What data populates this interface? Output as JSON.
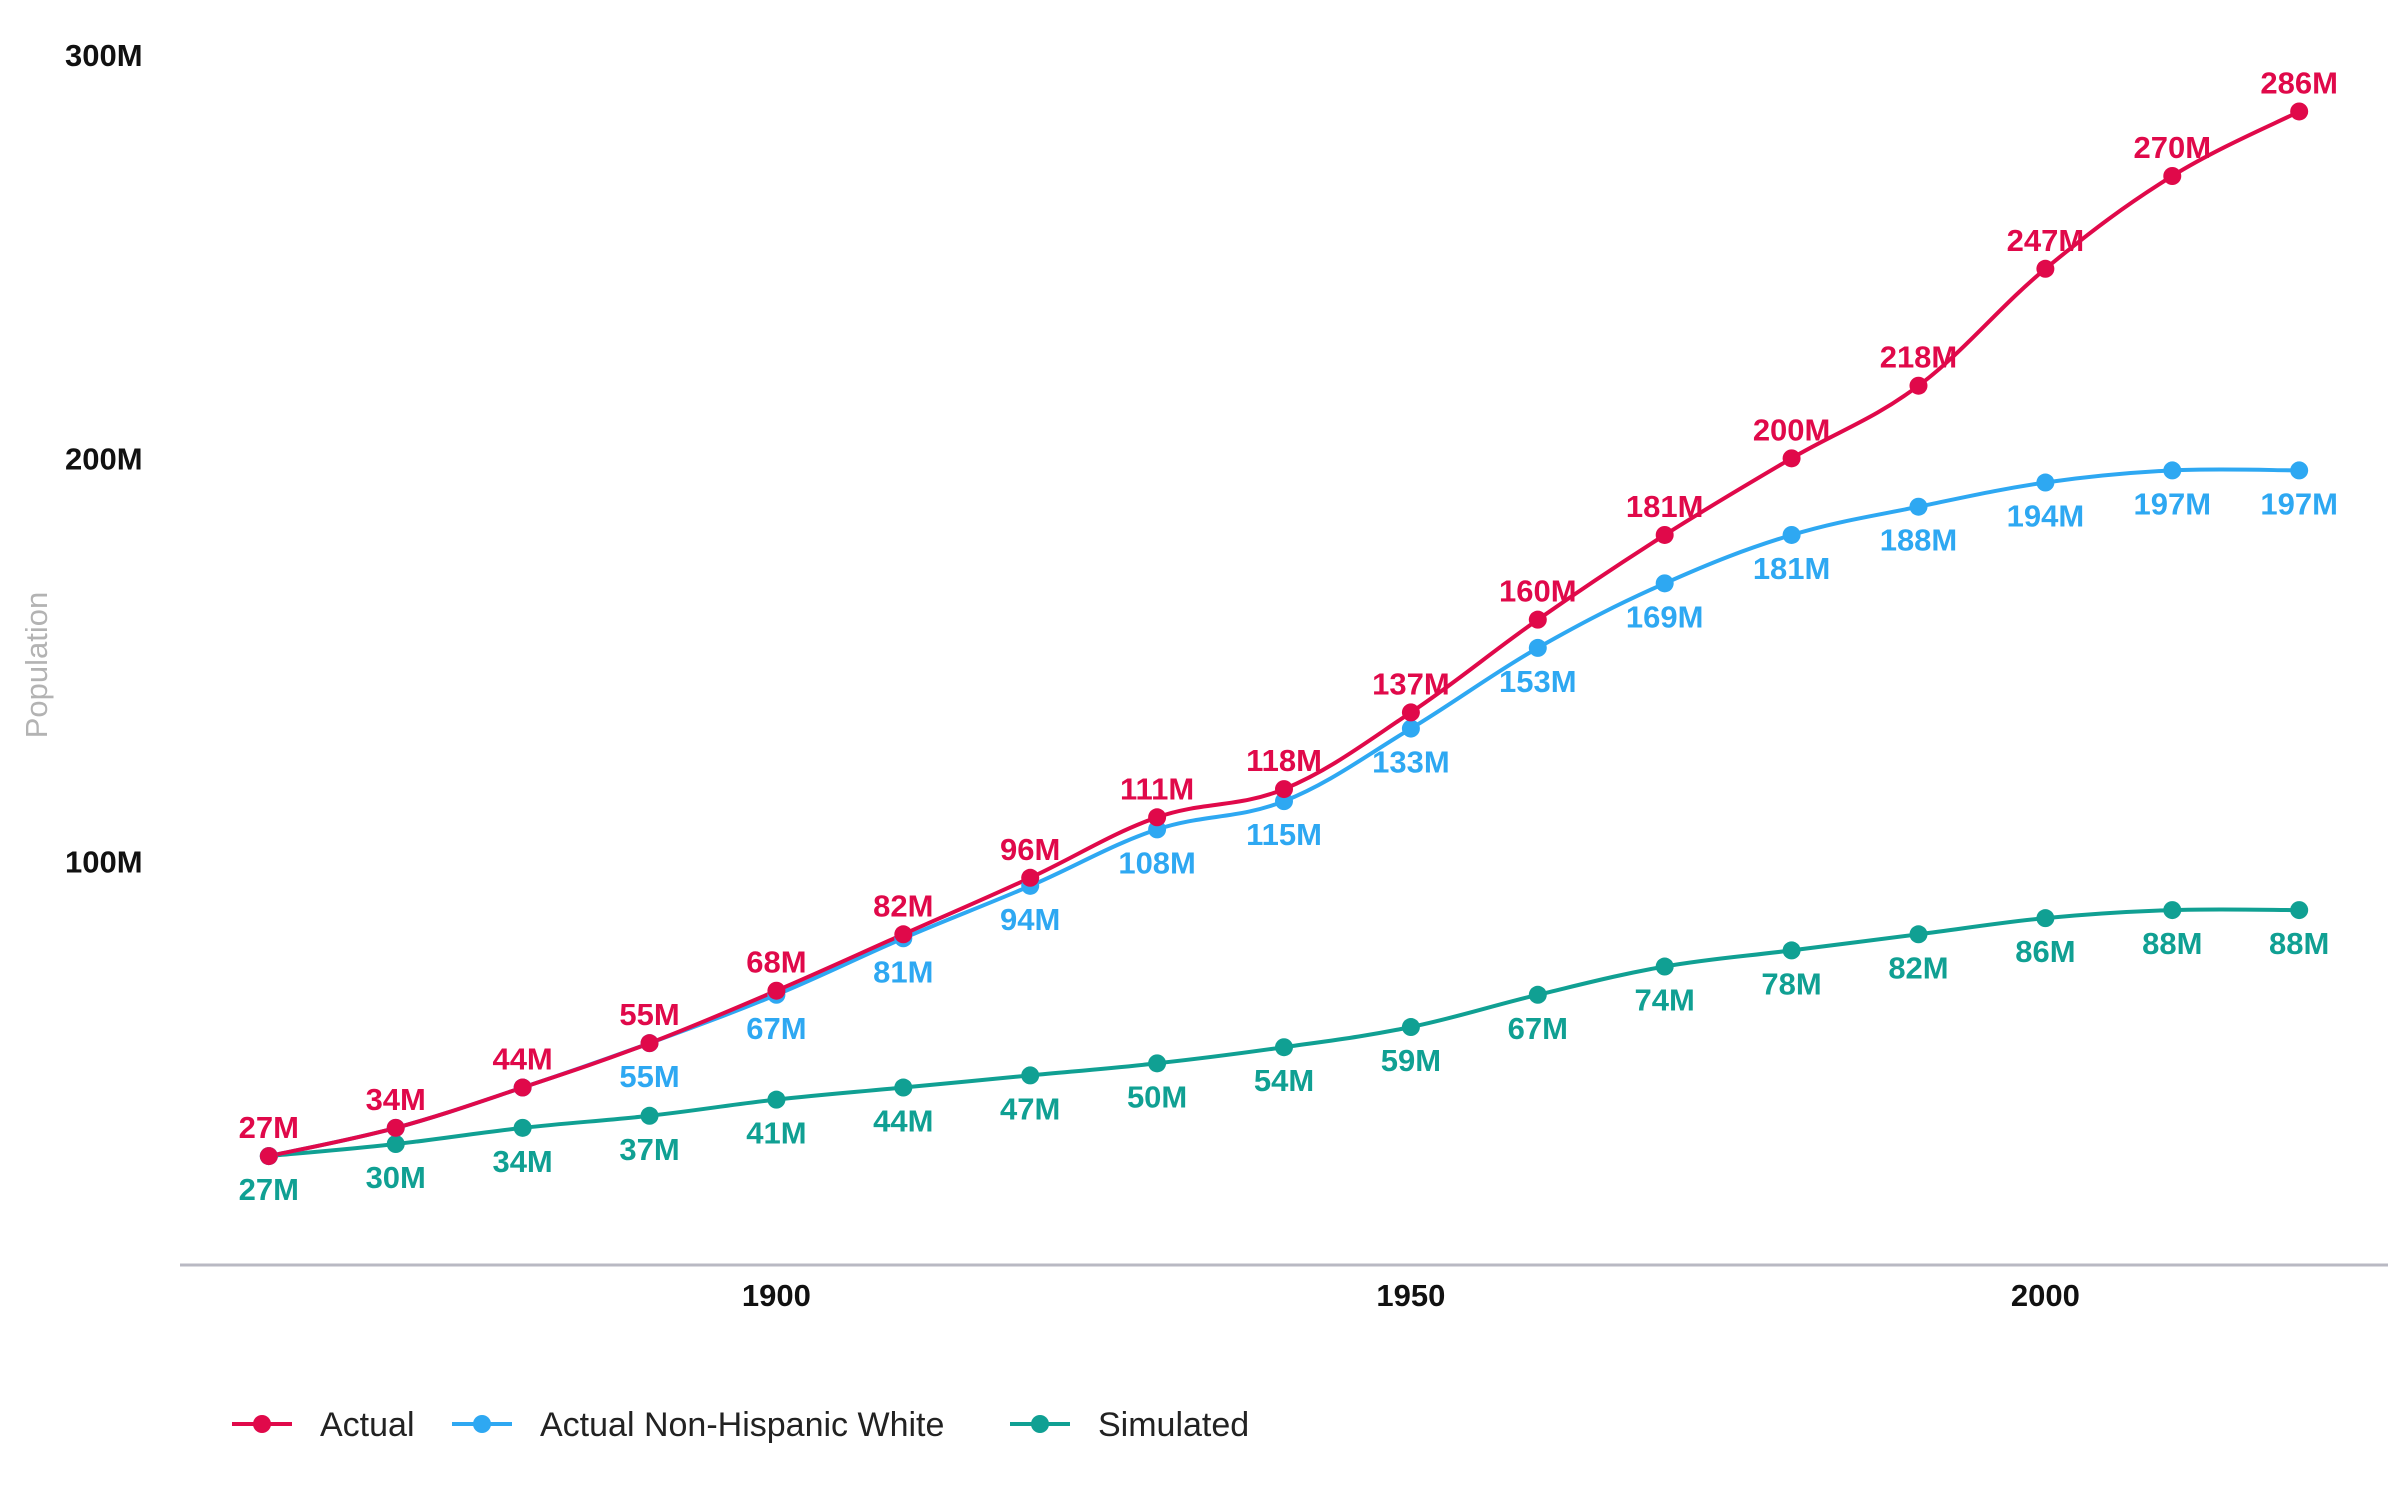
{
  "chart_data": {
    "type": "line",
    "title": "",
    "xlabel": "",
    "ylabel": "Population",
    "x": [
      1860,
      1870,
      1880,
      1890,
      1900,
      1910,
      1920,
      1930,
      1940,
      1950,
      1960,
      1970,
      1980,
      1990,
      2000,
      2010,
      2020
    ],
    "xticks": [
      "1900",
      "1950",
      "2000"
    ],
    "xtick_values": [
      1900,
      1950,
      2000
    ],
    "xlim": [
      1853,
      2027
    ],
    "yticks": [
      "100M",
      "200M",
      "300M"
    ],
    "ytick_values": [
      100,
      200,
      300
    ],
    "ylim": [
      0,
      300
    ],
    "grid": false,
    "legend_position": "bottom-left",
    "series": [
      {
        "name": "Actual",
        "color": "#e0094a",
        "label_position": "above",
        "values": [
          27,
          34,
          44,
          55,
          68,
          82,
          96,
          111,
          118,
          137,
          160,
          181,
          200,
          218,
          247,
          270,
          286
        ],
        "labels": [
          "27M",
          "34M",
          "44M",
          "55M",
          "68M",
          "82M",
          "96M",
          "111M",
          "118M",
          "137M",
          "160M",
          "181M",
          "200M",
          "218M",
          "247M",
          "270M",
          "286M"
        ]
      },
      {
        "name": "Actual Non-Hispanic White",
        "color": "#2ea8f2",
        "label_position": "below",
        "values": [
          27,
          34,
          44,
          55,
          67,
          81,
          94,
          108,
          115,
          133,
          153,
          169,
          181,
          188,
          194,
          197,
          197
        ],
        "labels": [
          "",
          "",
          "",
          "55M",
          "67M",
          "81M",
          "94M",
          "108M",
          "115M",
          "133M",
          "153M",
          "169M",
          "181M",
          "188M",
          "194M",
          "197M",
          "197M"
        ]
      },
      {
        "name": "Simulated",
        "color": "#10a093",
        "label_position": "below",
        "values": [
          27,
          30,
          34,
          37,
          41,
          44,
          47,
          50,
          54,
          59,
          67,
          74,
          78,
          82,
          86,
          88,
          88
        ],
        "labels": [
          "27M",
          "30M",
          "34M",
          "37M",
          "41M",
          "44M",
          "47M",
          "50M",
          "54M",
          "59M",
          "67M",
          "74M",
          "78M",
          "82M",
          "86M",
          "88M",
          "88M"
        ]
      }
    ]
  }
}
